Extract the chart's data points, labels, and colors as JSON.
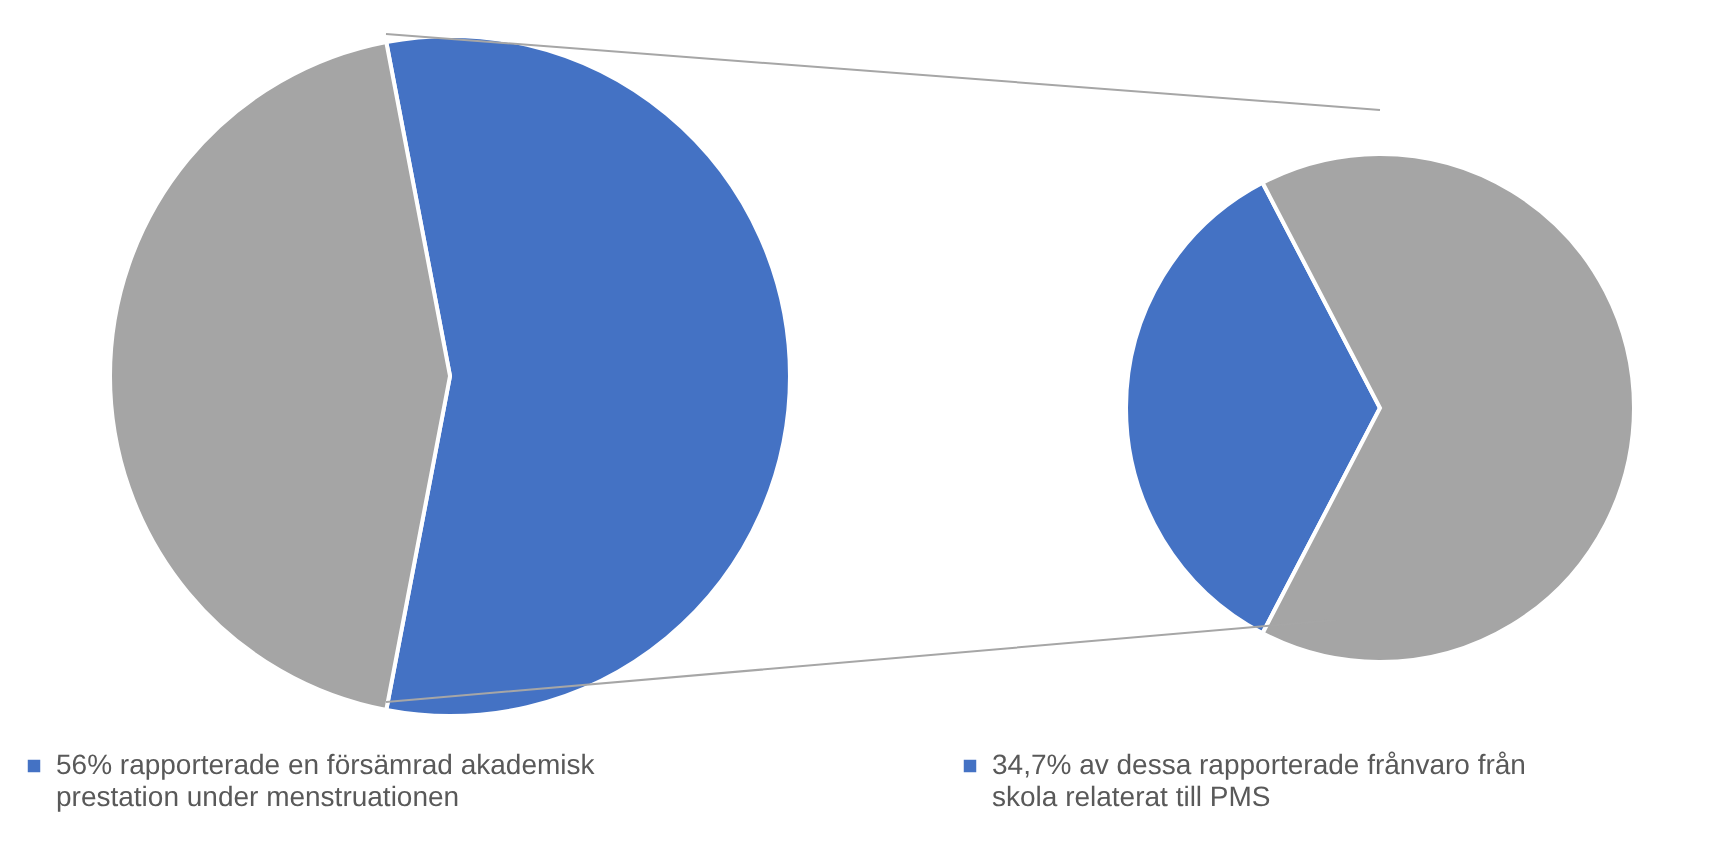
{
  "chart_data": [
    {
      "type": "pie",
      "categories": [
        "56% rapporterade en försämrad akademisk prestation under menstruationen",
        null
      ],
      "values": [
        56,
        44
      ],
      "colors": [
        "#4472c4",
        "#a5a5a5"
      ],
      "legend": "bottom"
    },
    {
      "type": "pie",
      "categories": [
        "34,7% av dessa rapporterade frånvaro från skola relaterat till PMS",
        null
      ],
      "values": [
        34.7,
        65.3
      ],
      "colors": [
        "#4472c4",
        "#a5a5a5"
      ],
      "legend": "bottom"
    }
  ]
}
